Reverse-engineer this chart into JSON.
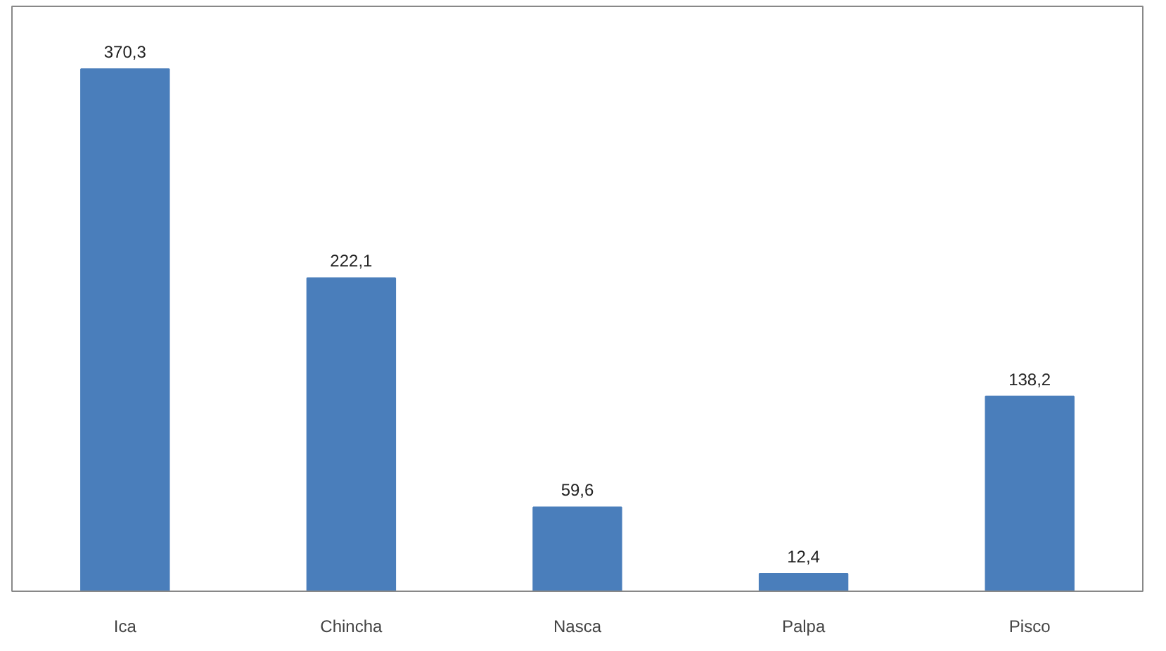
{
  "chart_data": {
    "type": "bar",
    "categories": [
      "Ica",
      "Chincha",
      "Nasca",
      "Palpa",
      "Pisco"
    ],
    "values": [
      370.3,
      222.1,
      59.6,
      12.4,
      138.2
    ],
    "value_labels": [
      "370,3",
      "222,1",
      "59,6",
      "12,4",
      "138,2"
    ],
    "color": "#4a7ebb",
    "grid": false
  }
}
